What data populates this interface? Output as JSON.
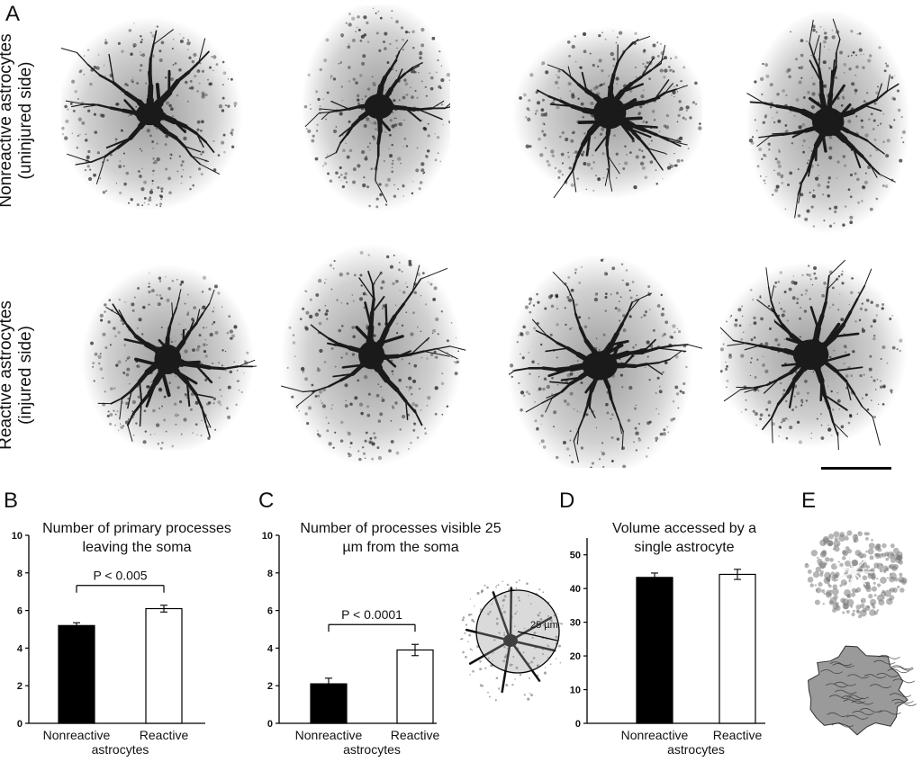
{
  "panels": {
    "A": "A",
    "B": "B",
    "C": "C",
    "D": "D",
    "E": "E"
  },
  "row_labels": {
    "nonreactive": [
      "Nonreactive astrocytes",
      "(uninjured side)"
    ],
    "reactive": [
      "Reactive astrocytes",
      "(injured side)"
    ]
  },
  "inset": {
    "radius_label": "25 µm"
  },
  "colors": {
    "nonreactive_bar": "#000000",
    "reactive_bar": "#ffffff",
    "cell_ink": "#1a1a1a"
  },
  "chart_data": [
    {
      "type": "bar",
      "title": "Number of primary processes leaving the soma",
      "categories": [
        "Nonreactive",
        "Reactive"
      ],
      "category_group_label": "astrocytes",
      "values": [
        5.2,
        6.1
      ],
      "errors": [
        0.15,
        0.18
      ],
      "ylim": [
        0,
        10
      ],
      "yticks": [
        0,
        2,
        4,
        6,
        8,
        10
      ],
      "annotation": "P < 0.005",
      "colors": [
        "#000000",
        "#ffffff"
      ]
    },
    {
      "type": "bar",
      "title": "Number of processes visible 25 µm from the soma",
      "categories": [
        "Nonreactive",
        "Reactive"
      ],
      "category_group_label": "astrocytes",
      "values": [
        2.1,
        3.9
      ],
      "errors": [
        0.3,
        0.3
      ],
      "ylim": [
        0,
        10
      ],
      "yticks": [
        0,
        2,
        4,
        6,
        8,
        10
      ],
      "annotation": "P < 0.0001",
      "colors": [
        "#000000",
        "#ffffff"
      ]
    },
    {
      "type": "bar",
      "title": "Volume accessed by a single astrocyte",
      "categories": [
        "Nonreactive",
        "Reactive"
      ],
      "category_group_label": "astrocytes",
      "values": [
        43.3,
        44.2
      ],
      "errors": [
        1.3,
        1.5
      ],
      "ylim": [
        0,
        55
      ],
      "yticks": [
        0,
        10,
        20,
        30,
        40,
        50
      ],
      "annotation": "",
      "colors": [
        "#000000",
        "#ffffff"
      ]
    }
  ]
}
